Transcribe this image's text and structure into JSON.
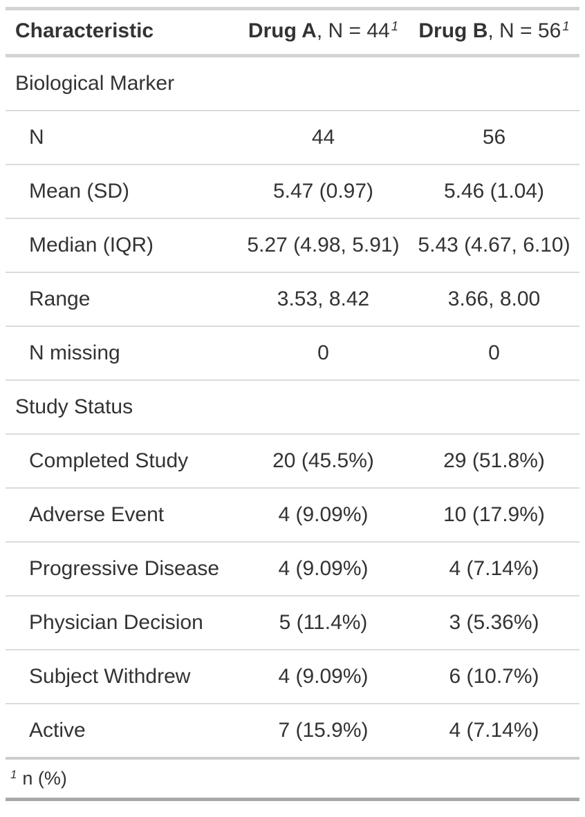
{
  "colors": {
    "text": "#333333",
    "border_light": "#d3d3d3",
    "row_line": "#dbdbdb",
    "body_bottom_border": "#cccccc",
    "table_bottom_border": "#a8a8a8",
    "background": "#ffffff"
  },
  "table": {
    "header": {
      "characteristic": "Characteristic",
      "col_a": {
        "name": "Drug A",
        "rest": ", N = 44",
        "footnote_mark": "1"
      },
      "col_b": {
        "name": "Drug B",
        "rest": ", N = 56",
        "footnote_mark": "1"
      }
    },
    "rows": [
      {
        "type": "section",
        "label": "Biological Marker",
        "a": "",
        "b": ""
      },
      {
        "type": "data",
        "label": "N",
        "a": "44",
        "b": "56"
      },
      {
        "type": "data",
        "label": "Mean (SD)",
        "a": "5.47 (0.97)",
        "b": "5.46 (1.04)"
      },
      {
        "type": "data",
        "label": "Median (IQR)",
        "a": "5.27 (4.98, 5.91)",
        "b": "5.43 (4.67, 6.10)"
      },
      {
        "type": "data",
        "label": "Range",
        "a": "3.53, 8.42",
        "b": "3.66, 8.00"
      },
      {
        "type": "data",
        "label": "N missing",
        "a": "0",
        "b": "0"
      },
      {
        "type": "section",
        "label": "Study Status",
        "a": "",
        "b": ""
      },
      {
        "type": "data",
        "label": "Completed Study",
        "a": "20 (45.5%)",
        "b": "29 (51.8%)"
      },
      {
        "type": "data",
        "label": "Adverse Event",
        "a": "4 (9.09%)",
        "b": "10 (17.9%)"
      },
      {
        "type": "data",
        "label": "Progressive Disease",
        "a": "4 (9.09%)",
        "b": "4 (7.14%)"
      },
      {
        "type": "data",
        "label": "Physician Decision",
        "a": "5 (11.4%)",
        "b": "3 (5.36%)"
      },
      {
        "type": "data",
        "label": "Subject Withdrew",
        "a": "4 (9.09%)",
        "b": "6 (10.7%)"
      },
      {
        "type": "data",
        "label": "Active",
        "a": "7 (15.9%)",
        "b": "4 (7.14%)"
      }
    ],
    "footnote": {
      "mark": "1",
      "text": "n (%)"
    }
  },
  "chart_data": {
    "type": "table",
    "title": "",
    "columns": [
      "Characteristic",
      "Drug A, N = 44",
      "Drug B, N = 56"
    ],
    "sections": [
      {
        "name": "Biological Marker",
        "rows": [
          {
            "label": "N",
            "drug_a": "44",
            "drug_b": "56"
          },
          {
            "label": "Mean (SD)",
            "drug_a": "5.47 (0.97)",
            "drug_b": "5.46 (1.04)"
          },
          {
            "label": "Median (IQR)",
            "drug_a": "5.27 (4.98, 5.91)",
            "drug_b": "5.43 (4.67, 6.10)"
          },
          {
            "label": "Range",
            "drug_a": "3.53, 8.42",
            "drug_b": "3.66, 8.00"
          },
          {
            "label": "N missing",
            "drug_a": "0",
            "drug_b": "0"
          }
        ]
      },
      {
        "name": "Study Status",
        "rows": [
          {
            "label": "Completed Study",
            "drug_a": "20 (45.5%)",
            "drug_b": "29 (51.8%)"
          },
          {
            "label": "Adverse Event",
            "drug_a": "4 (9.09%)",
            "drug_b": "10 (17.9%)"
          },
          {
            "label": "Progressive Disease",
            "drug_a": "4 (9.09%)",
            "drug_b": "4 (7.14%)"
          },
          {
            "label": "Physician Decision",
            "drug_a": "5 (11.4%)",
            "drug_b": "3 (5.36%)"
          },
          {
            "label": "Subject Withdrew",
            "drug_a": "4 (9.09%)",
            "drug_b": "6 (10.7%)"
          },
          {
            "label": "Active",
            "drug_a": "7 (15.9%)",
            "drug_b": "4 (7.14%)"
          }
        ]
      }
    ],
    "footnote": "1 n (%)"
  }
}
